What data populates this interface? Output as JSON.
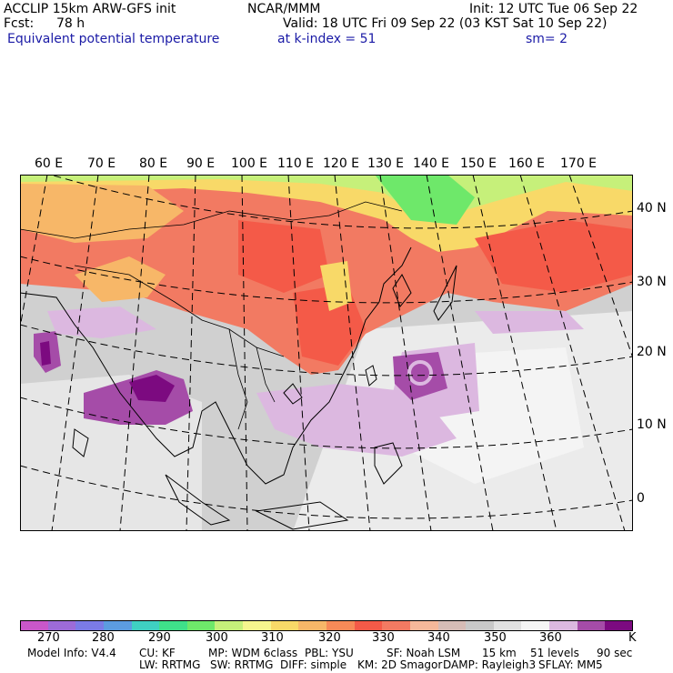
{
  "header": {
    "model": "ACCLIP 15km ARW-GFS init",
    "org": "NCAR/MMM",
    "init": "Init: 12 UTC Tue 06 Sep 22",
    "fcst_label": "Fcst:",
    "fcst_value": "78 h",
    "valid": "Valid: 18 UTC Fri 09 Sep 22 (03 KST Sat 10 Sep 22)",
    "field": "Equivalent potential temperature",
    "level": "at k-index =  51",
    "smoothing": "sm= 2"
  },
  "map": {
    "lon_labels": [
      "60 E",
      "70 E",
      "80 E",
      "90 E",
      "100 E",
      "110 E",
      "120 E",
      "130 E",
      "140 E",
      "150 E",
      "160 E",
      "170 E"
    ],
    "lat_labels": [
      "40 N",
      "30 N",
      "20 N",
      "10 N",
      "0"
    ]
  },
  "colorbar": {
    "colors": [
      "#c957c9",
      "#9d6bd8",
      "#7b7be6",
      "#5c9ce0",
      "#3fd0c2",
      "#3fe08a",
      "#6ee86a",
      "#c6f07a",
      "#f6f58e",
      "#f8d968",
      "#f7b768",
      "#f78a58",
      "#f45a48",
      "#f27a62",
      "#f5b89a",
      "#d6bcb6",
      "#c8c8c8",
      "#e1e1e1",
      "#f5f5f5",
      "#dcb8e0",
      "#a54ca8",
      "#7c0a80"
    ],
    "tick_labels": [
      "270",
      "280",
      "290",
      "300",
      "310",
      "320",
      "330",
      "340",
      "350",
      "360"
    ],
    "unit": "K"
  },
  "footer": {
    "line1": [
      "Model Info: V4.4",
      "CU: KF",
      "MP: WDM 6class",
      "PBL: YSU",
      "SF: Noah LSM",
      "15 km",
      "51 levels",
      "90 sec"
    ],
    "line2": [
      "LW: RRTMG",
      "SW: RRTMG",
      "DIFF: simple",
      "KM: 2D Smagor",
      "DAMP: Rayleigh3",
      "SFLAY: MM5"
    ]
  }
}
